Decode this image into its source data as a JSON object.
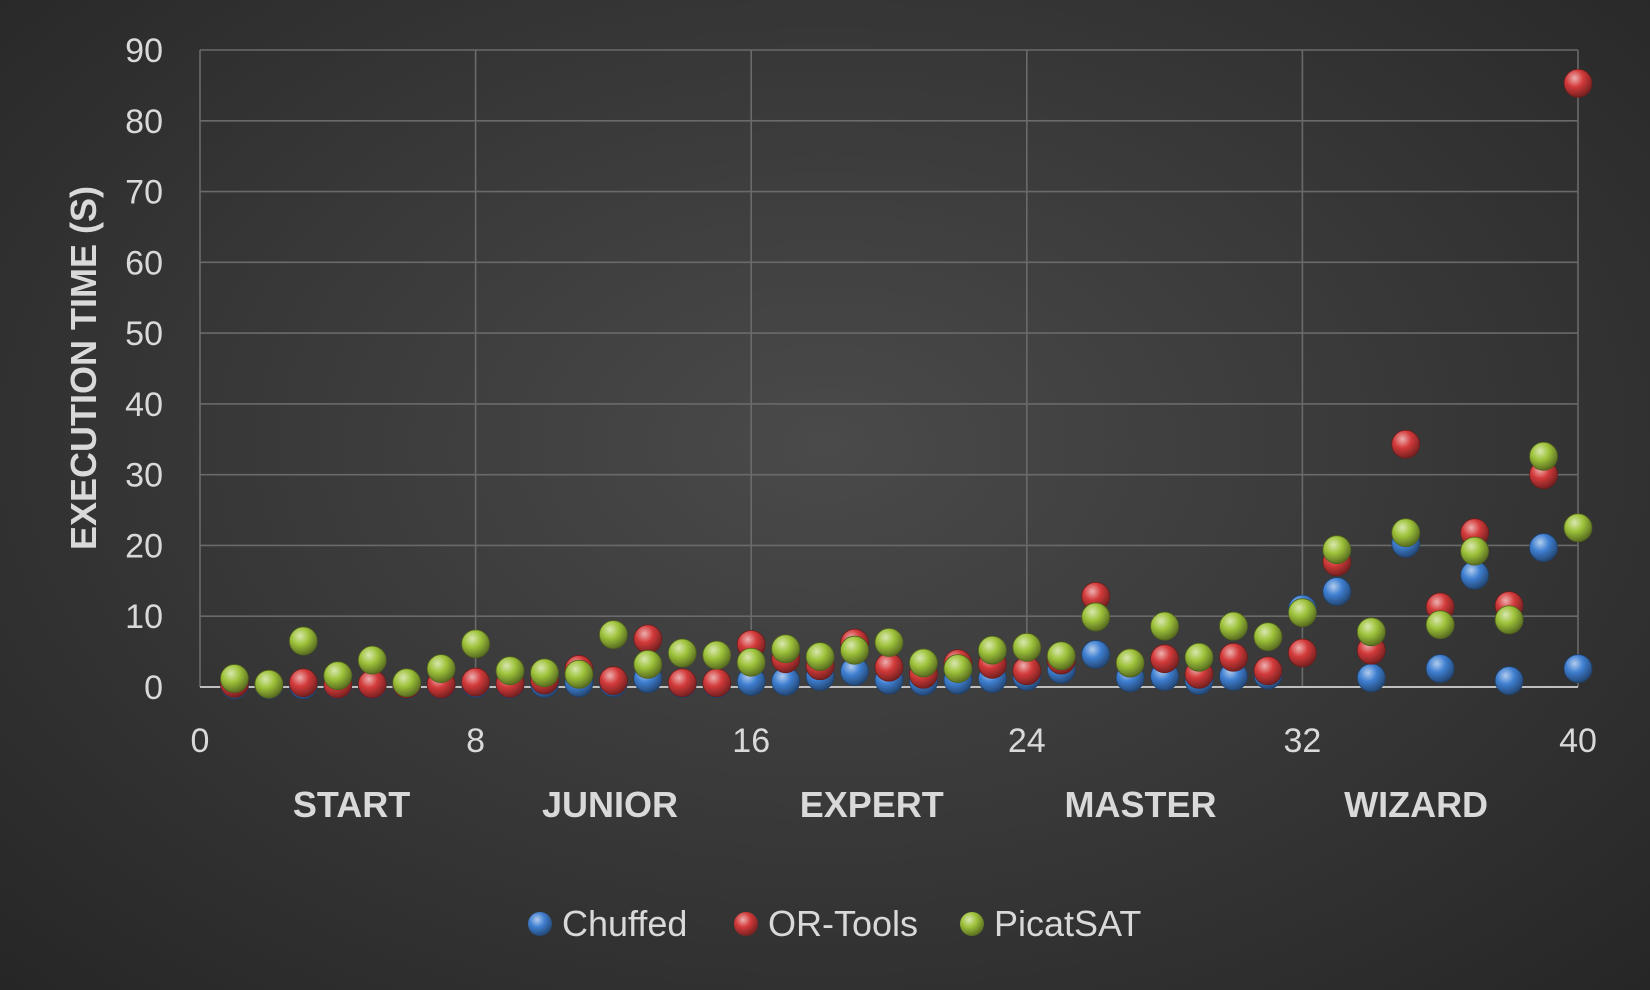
{
  "chart_data": {
    "type": "scatter",
    "title": "",
    "xlabel": "",
    "ylabel": "EXECUTION TIME (S)",
    "xlim": [
      0,
      40
    ],
    "ylim": [
      0,
      90
    ],
    "x_ticks": [
      "0",
      "8",
      "16",
      "24",
      "32",
      "40"
    ],
    "y_ticks": [
      "0",
      "10",
      "20",
      "30",
      "40",
      "50",
      "60",
      "70",
      "80",
      "90"
    ],
    "grid": true,
    "legend_position": "bottom",
    "category_bands": [
      {
        "label": "START",
        "x_center": 4.4
      },
      {
        "label": "JUNIOR",
        "x_center": 11.9
      },
      {
        "label": "EXPERT",
        "x_center": 19.5
      },
      {
        "label": "MASTER",
        "x_center": 27.3
      },
      {
        "label": "WIZARD",
        "x_center": 35.3
      }
    ],
    "series": [
      {
        "name": "Chuffed",
        "color": "#3f7fd1",
        "points": [
          [
            1,
            0.3
          ],
          [
            2,
            0.3
          ],
          [
            3,
            0.3
          ],
          [
            4,
            0.3
          ],
          [
            5,
            0.3
          ],
          [
            6,
            0.3
          ],
          [
            7,
            0.3
          ],
          [
            8,
            0.5
          ],
          [
            9,
            0.4
          ],
          [
            10,
            0.5
          ],
          [
            11,
            0.6
          ],
          [
            12,
            0.6
          ],
          [
            13,
            1.2
          ],
          [
            14,
            0.5
          ],
          [
            15,
            0.5
          ],
          [
            16,
            0.8
          ],
          [
            17,
            0.8
          ],
          [
            18,
            1.5
          ],
          [
            19,
            2.2
          ],
          [
            20,
            1.0
          ],
          [
            21,
            0.8
          ],
          [
            22,
            1.0
          ],
          [
            23,
            1.2
          ],
          [
            24,
            1.5
          ],
          [
            25,
            2.5
          ],
          [
            26,
            4.6
          ],
          [
            27,
            1.3
          ],
          [
            28,
            1.5
          ],
          [
            29,
            0.9
          ],
          [
            30,
            1.5
          ],
          [
            31,
            1.7
          ],
          [
            32,
            11.0
          ],
          [
            33,
            13.5
          ],
          [
            34,
            1.3
          ],
          [
            35,
            20.3
          ],
          [
            36,
            2.6
          ],
          [
            37,
            15.8
          ],
          [
            38,
            0.9
          ],
          [
            39,
            19.7
          ],
          [
            40,
            2.6
          ]
        ]
      },
      {
        "name": "OR-Tools",
        "color": "#d33a3a",
        "points": [
          [
            1,
            0.5
          ],
          [
            2,
            0.4
          ],
          [
            3,
            0.6
          ],
          [
            4,
            0.4
          ],
          [
            5,
            0.4
          ],
          [
            6,
            0.4
          ],
          [
            7,
            0.4
          ],
          [
            8,
            0.7
          ],
          [
            9,
            0.5
          ],
          [
            10,
            1.0
          ],
          [
            11,
            2.5
          ],
          [
            12,
            0.9
          ],
          [
            13,
            6.8
          ],
          [
            14,
            0.6
          ],
          [
            15,
            0.6
          ],
          [
            16,
            6.0
          ],
          [
            17,
            4.0
          ],
          [
            18,
            3.0
          ],
          [
            19,
            6.2
          ],
          [
            20,
            2.8
          ],
          [
            21,
            1.8
          ],
          [
            22,
            3.3
          ],
          [
            23,
            3.2
          ],
          [
            24,
            2.3
          ],
          [
            25,
            3.8
          ],
          [
            26,
            12.8
          ],
          [
            27,
            3.4
          ],
          [
            28,
            4.0
          ],
          [
            29,
            1.8
          ],
          [
            30,
            4.2
          ],
          [
            31,
            2.3
          ],
          [
            32,
            4.8
          ],
          [
            33,
            17.7
          ],
          [
            34,
            5.2
          ],
          [
            35,
            34.3
          ],
          [
            36,
            11.3
          ],
          [
            37,
            21.8
          ],
          [
            38,
            11.5
          ],
          [
            39,
            30.0
          ],
          [
            40,
            85.3
          ]
        ]
      },
      {
        "name": "PicatSAT",
        "color": "#9ec23a",
        "points": [
          [
            1,
            1.2
          ],
          [
            2,
            0.4
          ],
          [
            3,
            6.5
          ],
          [
            4,
            1.6
          ],
          [
            5,
            3.8
          ],
          [
            6,
            0.6
          ],
          [
            7,
            2.6
          ],
          [
            8,
            6.1
          ],
          [
            9,
            2.3
          ],
          [
            10,
            2.0
          ],
          [
            11,
            1.8
          ],
          [
            12,
            7.4
          ],
          [
            13,
            3.2
          ],
          [
            14,
            4.8
          ],
          [
            15,
            4.5
          ],
          [
            16,
            3.5
          ],
          [
            17,
            5.4
          ],
          [
            18,
            4.3
          ],
          [
            19,
            5.2
          ],
          [
            20,
            6.3
          ],
          [
            21,
            3.4
          ],
          [
            22,
            2.6
          ],
          [
            23,
            5.2
          ],
          [
            24,
            5.6
          ],
          [
            25,
            4.4
          ],
          [
            26,
            9.9
          ],
          [
            27,
            3.4
          ],
          [
            28,
            8.6
          ],
          [
            29,
            4.2
          ],
          [
            30,
            8.6
          ],
          [
            31,
            7.1
          ],
          [
            32,
            10.5
          ],
          [
            33,
            19.4
          ],
          [
            34,
            7.8
          ],
          [
            35,
            21.8
          ],
          [
            36,
            8.8
          ],
          [
            37,
            19.2
          ],
          [
            38,
            9.5
          ],
          [
            39,
            32.6
          ],
          [
            40,
            22.5
          ]
        ]
      }
    ]
  }
}
